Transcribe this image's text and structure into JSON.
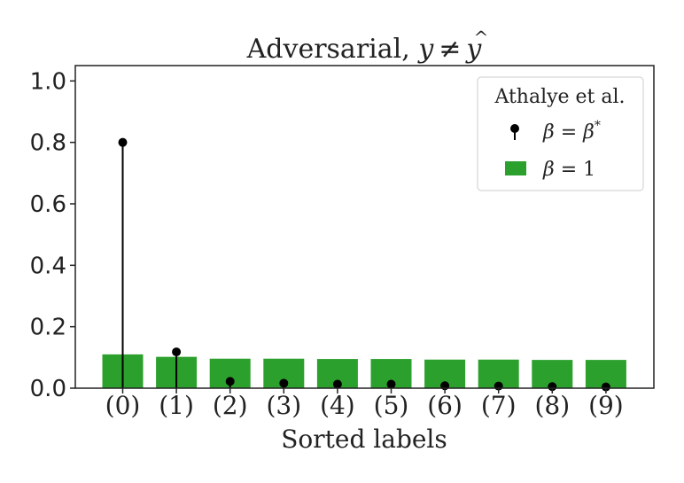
{
  "chart_data": {
    "type": "bar",
    "title_text": "Adversarial, ",
    "title_math": {
      "y": "y",
      "neq": "≠",
      "yhat": "y",
      "hat": "^"
    },
    "xlabel": "Sorted labels",
    "ylabel": "",
    "categories": [
      "(0)",
      "(1)",
      "(2)",
      "(3)",
      "(4)",
      "(5)",
      "(6)",
      "(7)",
      "(8)",
      "(9)"
    ],
    "ylim": [
      0,
      1.05
    ],
    "yticks": [
      "0.0",
      "0.2",
      "0.4",
      "0.6",
      "0.8",
      "1.0"
    ],
    "ytick_values": [
      0.0,
      0.2,
      0.4,
      0.6,
      0.8,
      1.0
    ],
    "grid": false,
    "legend": {
      "title": "Athalye et al.",
      "placement": "top-right",
      "stem_label": {
        "beta": "β",
        "eq": " = ",
        "rhs": "β",
        "sup": "*"
      },
      "bar_label": {
        "beta": "β",
        "eq": " = ",
        "rhs": "1"
      }
    },
    "series": [
      {
        "kind": "bar",
        "color": "#2ca02c",
        "values": [
          0.11,
          0.102,
          0.096,
          0.096,
          0.095,
          0.095,
          0.093,
          0.093,
          0.092,
          0.092
        ]
      },
      {
        "kind": "stem",
        "color": "#000000",
        "values": [
          0.8,
          0.118,
          0.022,
          0.016,
          0.013,
          0.013,
          0.008,
          0.007,
          0.005,
          0.004
        ]
      }
    ]
  }
}
